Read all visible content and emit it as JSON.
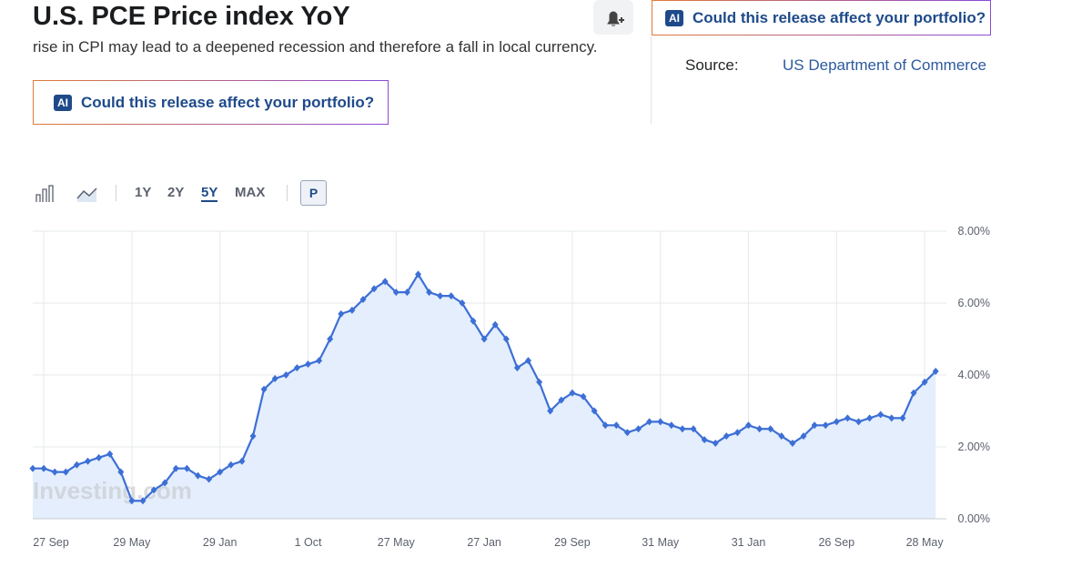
{
  "header": {
    "title": "U.S. PCE Price index YoY",
    "text": "rise in CPI may lead to a deepened recession and therefore a fall in local currency.",
    "ai_button": "Could this release affect your portfolio?",
    "ai_button_top": "Could this release affect your portfolio?",
    "ai_icon": "AI",
    "source_label": "Source:",
    "source": "US Department of Commerce"
  },
  "toolbar": {
    "ranges": [
      "1Y",
      "2Y",
      "5Y",
      "MAX"
    ],
    "active": "5Y",
    "p_button": "P"
  },
  "chart_data": {
    "type": "line",
    "area": true,
    "watermark": "Investing.com",
    "categories": [
      null,
      "27 Sep",
      null,
      null,
      null,
      null,
      null,
      null,
      null,
      "29 May",
      null,
      null,
      null,
      null,
      null,
      null,
      null,
      "29 Jan",
      null,
      null,
      null,
      null,
      null,
      null,
      null,
      "1 Oct",
      null,
      null,
      null,
      null,
      null,
      null,
      null,
      "27 May",
      null,
      null,
      null,
      null,
      null,
      null,
      null,
      "27 Jan",
      null,
      null,
      null,
      null,
      null,
      null,
      null,
      "29 Sep",
      null,
      null,
      null,
      null,
      null,
      null,
      null,
      "31 May",
      null,
      null,
      null,
      null,
      null,
      null,
      null,
      "31 Jan",
      null,
      null,
      null,
      null,
      null,
      null,
      null,
      "26 Sep",
      null,
      null,
      null,
      null,
      null,
      null,
      null,
      "28 May",
      null
    ],
    "series": [
      {
        "name": "PCE Price index YoY",
        "color": "#3d6fd6",
        "fill": "#e4eefc",
        "values": [
          1.4,
          1.4,
          1.3,
          1.3,
          1.5,
          1.6,
          1.7,
          1.8,
          1.3,
          0.5,
          0.5,
          0.8,
          1.0,
          1.4,
          1.4,
          1.2,
          1.1,
          1.3,
          1.5,
          1.6,
          2.3,
          3.6,
          3.9,
          4.0,
          4.2,
          4.3,
          4.4,
          5.0,
          5.7,
          5.8,
          6.1,
          6.4,
          6.6,
          6.3,
          6.3,
          6.8,
          6.3,
          6.2,
          6.2,
          6.0,
          5.5,
          5.0,
          5.4,
          5.0,
          4.2,
          4.4,
          3.8,
          3.0,
          3.3,
          3.5,
          3.4,
          3.0,
          2.6,
          2.6,
          2.4,
          2.5,
          2.7,
          2.7,
          2.6,
          2.5,
          2.5,
          2.2,
          2.1,
          2.3,
          2.4,
          2.6,
          2.5,
          2.5,
          2.3,
          2.1,
          2.3,
          2.6,
          2.6,
          2.7,
          2.8,
          2.7,
          2.8,
          2.9,
          2.8,
          2.8,
          3.5,
          3.8,
          4.1
        ]
      }
    ],
    "ylim": [
      0,
      8
    ],
    "yticks": [
      {
        "value": 0,
        "label": "0.00%"
      },
      {
        "value": 2,
        "label": "2.00%"
      },
      {
        "value": 4,
        "label": "4.00%"
      },
      {
        "value": 6,
        "label": "6.00%"
      },
      {
        "value": 8,
        "label": "8.00%"
      }
    ],
    "grid": true
  }
}
